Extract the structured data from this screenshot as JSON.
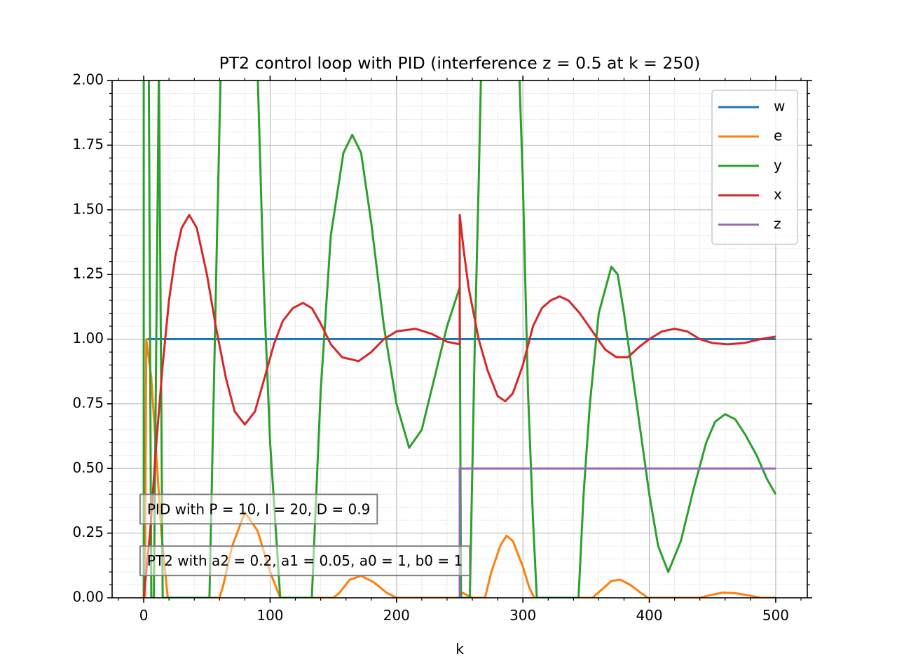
{
  "chart_data": {
    "type": "line",
    "title": "PT2 control loop with PID (interference z = 0.5 at k = 250)",
    "xlabel": "k",
    "ylabel": "",
    "xlim": [
      -25,
      525
    ],
    "ylim": [
      0,
      2
    ],
    "x_ticks": [
      0,
      100,
      200,
      300,
      400,
      500
    ],
    "x_tick_labels": [
      "0",
      "100",
      "200",
      "300",
      "400",
      "500"
    ],
    "y_ticks": [
      0,
      0.25,
      0.5,
      0.75,
      1.0,
      1.25,
      1.5,
      1.75,
      2.0
    ],
    "y_tick_labels": [
      "0.00",
      "0.25",
      "0.50",
      "0.75",
      "1.00",
      "1.25",
      "1.50",
      "1.75",
      "2.00"
    ],
    "grid": "major and minor",
    "legend_position": "top-right",
    "series": [
      {
        "name": "w",
        "color": "#1f77b4",
        "points": [
          [
            3,
            1.0
          ],
          [
            500,
            1.0
          ]
        ]
      },
      {
        "name": "e",
        "color": "#ff7f0e",
        "points": [
          [
            1,
            0.0
          ],
          [
            2,
            1.0
          ],
          [
            6,
            0.85
          ],
          [
            10,
            0.55
          ],
          [
            14,
            0.25
          ],
          [
            19,
            0.0
          ],
          [
            60,
            0.0
          ],
          [
            63,
            0.05
          ],
          [
            70,
            0.2
          ],
          [
            80,
            0.33
          ],
          [
            90,
            0.26
          ],
          [
            100,
            0.1
          ],
          [
            108,
            0.0
          ],
          [
            150,
            0.0
          ],
          [
            155,
            0.02
          ],
          [
            163,
            0.07
          ],
          [
            172,
            0.085
          ],
          [
            182,
            0.06
          ],
          [
            192,
            0.02
          ],
          [
            200,
            0.0
          ],
          [
            250,
            0.0
          ],
          [
            252,
            0.02
          ],
          [
            260,
            0.0
          ],
          [
            270,
            0.0
          ],
          [
            275,
            0.1
          ],
          [
            282,
            0.2
          ],
          [
            287,
            0.24
          ],
          [
            292,
            0.22
          ],
          [
            300,
            0.12
          ],
          [
            305,
            0.04
          ],
          [
            309,
            0.0
          ],
          [
            355,
            0.0
          ],
          [
            362,
            0.03
          ],
          [
            370,
            0.065
          ],
          [
            377,
            0.07
          ],
          [
            385,
            0.05
          ],
          [
            393,
            0.02
          ],
          [
            399,
            0.0
          ],
          [
            440,
            0.0
          ],
          [
            448,
            0.01
          ],
          [
            458,
            0.02
          ],
          [
            468,
            0.018
          ],
          [
            478,
            0.01
          ],
          [
            488,
            0.0
          ],
          [
            500,
            0.0
          ]
        ]
      },
      {
        "name": "y",
        "color": "#2ca02c",
        "points": [
          [
            0,
            0.0
          ],
          [
            0,
            2.05
          ],
          [
            4,
            2.05
          ],
          [
            6,
            0.0
          ],
          [
            8,
            0.0
          ],
          [
            12,
            2.05
          ],
          [
            15,
            0.0
          ],
          [
            52,
            0.0
          ],
          [
            58,
            1.4
          ],
          [
            61,
            2.05
          ],
          [
            90,
            2.05
          ],
          [
            95,
            1.2
          ],
          [
            100,
            0.6
          ],
          [
            108,
            0.0
          ],
          [
            133,
            0.0
          ],
          [
            140,
            0.8
          ],
          [
            148,
            1.4
          ],
          [
            158,
            1.72
          ],
          [
            165,
            1.79
          ],
          [
            172,
            1.72
          ],
          [
            180,
            1.45
          ],
          [
            190,
            1.05
          ],
          [
            200,
            0.75
          ],
          [
            210,
            0.58
          ],
          [
            220,
            0.65
          ],
          [
            230,
            0.85
          ],
          [
            240,
            1.05
          ],
          [
            250,
            1.2
          ],
          [
            251,
            0.0
          ],
          [
            258,
            0.0
          ],
          [
            262,
            1.0
          ],
          [
            265,
            1.6
          ],
          [
            267,
            2.05
          ],
          [
            297,
            2.05
          ],
          [
            300,
            1.6
          ],
          [
            304,
            0.8
          ],
          [
            308,
            0.3
          ],
          [
            311,
            0.0
          ],
          [
            344,
            0.0
          ],
          [
            348,
            0.4
          ],
          [
            353,
            0.75
          ],
          [
            360,
            1.1
          ],
          [
            370,
            1.28
          ],
          [
            375,
            1.25
          ],
          [
            380,
            1.1
          ],
          [
            390,
            0.75
          ],
          [
            400,
            0.4
          ],
          [
            407,
            0.2
          ],
          [
            415,
            0.1
          ],
          [
            425,
            0.22
          ],
          [
            435,
            0.42
          ],
          [
            445,
            0.6
          ],
          [
            452,
            0.68
          ],
          [
            460,
            0.71
          ],
          [
            468,
            0.69
          ],
          [
            476,
            0.63
          ],
          [
            485,
            0.55
          ],
          [
            493,
            0.46
          ],
          [
            500,
            0.4
          ]
        ]
      },
      {
        "name": "x",
        "color": "#d62728",
        "points": [
          [
            0,
            0.0
          ],
          [
            5,
            0.25
          ],
          [
            10,
            0.6
          ],
          [
            15,
            0.9
          ],
          [
            20,
            1.15
          ],
          [
            25,
            1.32
          ],
          [
            30,
            1.43
          ],
          [
            36,
            1.48
          ],
          [
            42,
            1.43
          ],
          [
            50,
            1.25
          ],
          [
            57,
            1.05
          ],
          [
            65,
            0.85
          ],
          [
            72,
            0.72
          ],
          [
            80,
            0.67
          ],
          [
            88,
            0.72
          ],
          [
            95,
            0.84
          ],
          [
            103,
            0.98
          ],
          [
            110,
            1.07
          ],
          [
            118,
            1.12
          ],
          [
            126,
            1.14
          ],
          [
            133,
            1.12
          ],
          [
            140,
            1.06
          ],
          [
            148,
            0.98
          ],
          [
            157,
            0.93
          ],
          [
            170,
            0.915
          ],
          [
            180,
            0.95
          ],
          [
            190,
            1.0
          ],
          [
            200,
            1.03
          ],
          [
            215,
            1.04
          ],
          [
            228,
            1.02
          ],
          [
            240,
            0.99
          ],
          [
            250,
            0.98
          ],
          [
            250,
            1.48
          ],
          [
            253,
            1.35
          ],
          [
            257,
            1.2
          ],
          [
            265,
            1.0
          ],
          [
            272,
            0.88
          ],
          [
            280,
            0.78
          ],
          [
            286,
            0.76
          ],
          [
            292,
            0.79
          ],
          [
            300,
            0.9
          ],
          [
            308,
            1.05
          ],
          [
            315,
            1.12
          ],
          [
            322,
            1.15
          ],
          [
            329,
            1.165
          ],
          [
            336,
            1.15
          ],
          [
            345,
            1.1
          ],
          [
            355,
            1.03
          ],
          [
            365,
            0.96
          ],
          [
            374,
            0.93
          ],
          [
            383,
            0.93
          ],
          [
            392,
            0.97
          ],
          [
            400,
            1.0
          ],
          [
            410,
            1.03
          ],
          [
            420,
            1.04
          ],
          [
            430,
            1.03
          ],
          [
            440,
            1.0
          ],
          [
            450,
            0.985
          ],
          [
            462,
            0.98
          ],
          [
            475,
            0.985
          ],
          [
            488,
            1.0
          ],
          [
            500,
            1.01
          ]
        ]
      },
      {
        "name": "z",
        "color": "#9467bd",
        "points": [
          [
            250,
            0.0
          ],
          [
            250,
            0.5
          ],
          [
            500,
            0.5
          ]
        ]
      }
    ],
    "annotations": [
      {
        "text": "PID with P = 10, I = 20, D = 0.9",
        "anchor_k": -4,
        "anchor_value": 0.32
      },
      {
        "text": "PT2 with a2 = 0.2, a1 = 0.05, a0 = 1, b0 = 1",
        "anchor_k": -4,
        "anchor_value": 0.12
      }
    ]
  }
}
